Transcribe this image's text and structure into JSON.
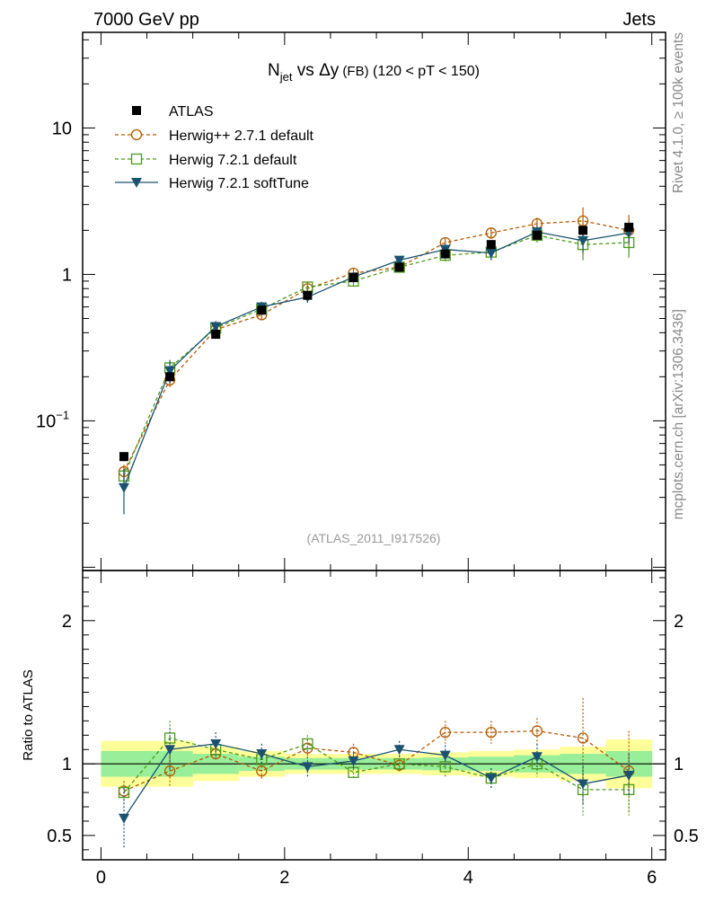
{
  "header": {
    "energy_label": "7000 GeV pp",
    "category_label": "Jets"
  },
  "side_labels": {
    "rivet": "Rivet 4.1.0, ≥ 100k events",
    "mcplots": "mcplots.cern.ch [arXiv:1306.3436]"
  },
  "chart_data": {
    "type": "scatter",
    "title": {
      "main": "N",
      "sub": "jet",
      "rest": " vs Δy",
      "small": " (FB)",
      "tail": " (120 < pT < 150)"
    },
    "analysis_id": "(ATLAS_2011_I917526)",
    "xlim": [
      -0.2,
      6.15
    ],
    "x": [
      0.25,
      0.75,
      1.25,
      1.75,
      2.25,
      2.75,
      3.25,
      3.75,
      4.25,
      4.75,
      5.25,
      5.75
    ],
    "x_ticks": [
      0,
      2,
      4,
      6
    ],
    "x_tick_labels": [
      "0",
      "2",
      "4",
      "6"
    ],
    "main_panel": {
      "yscale": "log",
      "ylim": [
        0.0095,
        45
      ],
      "y_ticks": [
        0.1,
        1,
        10
      ],
      "y_tick_labels": [
        {
          "base": "10",
          "exp": "−1"
        },
        {
          "base": "1",
          "exp": ""
        },
        {
          "base": "10",
          "exp": ""
        }
      ]
    },
    "ratio_panel": {
      "ylabel": "Ratio to ATLAS",
      "ylim": [
        0.33,
        2.35
      ],
      "y_ticks": [
        0.5,
        1,
        2
      ],
      "y_tick_labels": [
        "0.5",
        "1",
        "2"
      ],
      "band_yellow": [
        [
          0.84,
          1.16
        ],
        [
          0.84,
          1.16
        ],
        [
          0.88,
          1.12
        ],
        [
          0.91,
          1.09
        ],
        [
          0.93,
          1.07
        ],
        [
          0.93,
          1.07
        ],
        [
          0.93,
          1.07
        ],
        [
          0.92,
          1.08
        ],
        [
          0.91,
          1.09
        ],
        [
          0.9,
          1.1
        ],
        [
          0.88,
          1.12
        ],
        [
          0.83,
          1.17
        ]
      ],
      "band_green": [
        [
          0.91,
          1.09
        ],
        [
          0.91,
          1.09
        ],
        [
          0.93,
          1.07
        ],
        [
          0.95,
          1.05
        ],
        [
          0.96,
          1.04
        ],
        [
          0.96,
          1.04
        ],
        [
          0.96,
          1.04
        ],
        [
          0.955,
          1.045
        ],
        [
          0.95,
          1.05
        ],
        [
          0.94,
          1.06
        ],
        [
          0.93,
          1.07
        ],
        [
          0.91,
          1.09
        ]
      ]
    },
    "series": [
      {
        "name": "ATLAS",
        "style": "data",
        "color": "#000000",
        "values": [
          0.057,
          0.2,
          0.39,
          0.57,
          0.72,
          0.95,
          1.12,
          1.38,
          1.6,
          1.85,
          2.0,
          2.1
        ],
        "errors": [
          0.004,
          0.012,
          0.02,
          0.03,
          0.04,
          0.05,
          0.06,
          0.07,
          0.09,
          0.11,
          0.12,
          0.14
        ]
      },
      {
        "name": "Herwig++ 2.7.1 default",
        "style": "circle-dashed",
        "color": "#b35900",
        "values": [
          0.045,
          0.19,
          0.42,
          0.53,
          0.8,
          1.02,
          1.12,
          1.65,
          1.92,
          2.22,
          2.32,
          2.0
        ],
        "errors": [
          0.005,
          0.02,
          0.03,
          0.04,
          0.06,
          0.07,
          0.08,
          0.13,
          0.17,
          0.22,
          0.55,
          0.55
        ],
        "ratio": [
          0.81,
          0.95,
          1.07,
          0.95,
          1.11,
          1.08,
          0.99,
          1.22,
          1.22,
          1.23,
          1.18,
          0.95
        ],
        "ratio_errors": [
          0.07,
          0.11,
          0.05,
          0.06,
          0.06,
          0.06,
          0.05,
          0.08,
          0.08,
          0.09,
          0.28,
          0.28
        ]
      },
      {
        "name": "Herwig 7.2.1 default",
        "style": "square-dashed",
        "color": "#4c9a1a",
        "values": [
          0.042,
          0.23,
          0.43,
          0.58,
          0.82,
          0.9,
          1.12,
          1.35,
          1.42,
          1.85,
          1.6,
          1.65
        ],
        "errors": [
          0.005,
          0.03,
          0.03,
          0.04,
          0.06,
          0.06,
          0.08,
          0.12,
          0.15,
          0.2,
          0.35,
          0.35
        ],
        "ratio": [
          0.8,
          1.18,
          1.1,
          1.03,
          1.14,
          0.94,
          1.0,
          0.98,
          0.9,
          1.0,
          0.82,
          0.82
        ],
        "ratio_errors": [
          0.08,
          0.12,
          0.06,
          0.06,
          0.06,
          0.05,
          0.06,
          0.07,
          0.07,
          0.09,
          0.18,
          0.18
        ]
      },
      {
        "name": "Herwig 7.2.1 softTune",
        "style": "triangle-solid",
        "color": "#1a5270",
        "values": [
          0.035,
          0.22,
          0.44,
          0.6,
          0.7,
          0.96,
          1.25,
          1.48,
          1.4,
          1.95,
          1.7,
          1.92
        ],
        "errors": [
          0.012,
          0.04,
          0.04,
          0.05,
          0.06,
          0.06,
          0.08,
          0.12,
          0.15,
          0.2,
          0.3,
          0.3
        ],
        "ratio": [
          0.62,
          1.1,
          1.14,
          1.07,
          0.98,
          1.02,
          1.1,
          1.06,
          0.9,
          1.05,
          0.86,
          0.92
        ],
        "ratio_errors": [
          0.21,
          0.15,
          0.08,
          0.07,
          0.07,
          0.06,
          0.06,
          0.07,
          0.07,
          0.09,
          0.15,
          0.15
        ]
      }
    ]
  }
}
